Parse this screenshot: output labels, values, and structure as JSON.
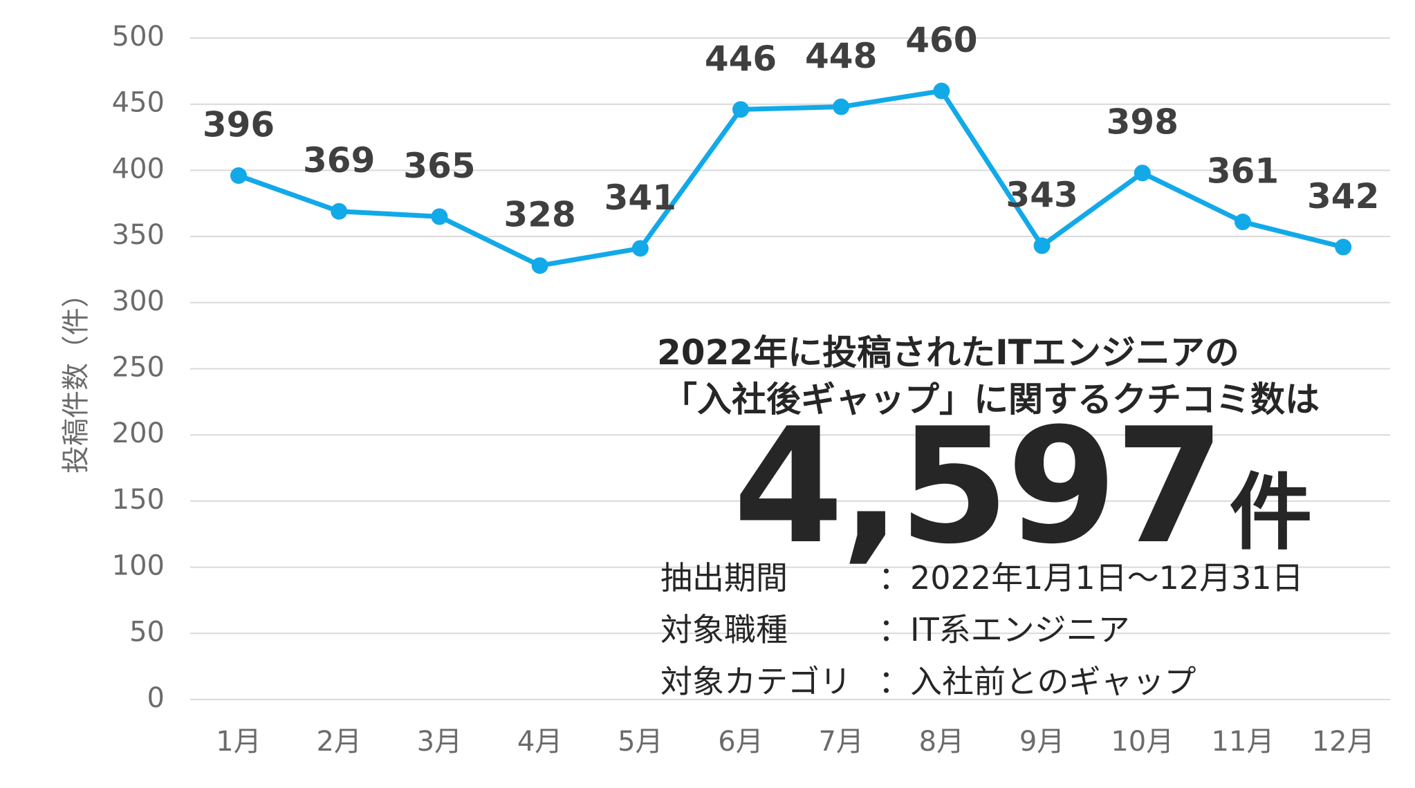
{
  "chart_data": {
    "type": "line",
    "title": "",
    "ylabel": "投稿件数（件）",
    "xlabel": "",
    "ylim": [
      0,
      500
    ],
    "yticks": [
      0,
      50,
      100,
      150,
      200,
      250,
      300,
      350,
      400,
      450,
      500
    ],
    "grid": true,
    "categories": [
      "1月",
      "2月",
      "3月",
      "4月",
      "5月",
      "6月",
      "7月",
      "8月",
      "9月",
      "10月",
      "11月",
      "12月"
    ],
    "series": [
      {
        "values": [
          396,
          369,
          365,
          328,
          341,
          446,
          448,
          460,
          343,
          398,
          361,
          342
        ]
      }
    ],
    "line_color": "#12a9e8",
    "label_color": "#3f3f3f",
    "grid_color": "#d9d9d9"
  },
  "summary": {
    "headline_line1": "2022年に投稿されたITエンジニアの",
    "headline_line2": "「入社後ギャップ」に関するクチコミ数は",
    "total": "4,597",
    "total_unit": "件",
    "meta": [
      {
        "label": "抽出期間",
        "value": "：2022年1月1日～12月31日"
      },
      {
        "label": "対象職種",
        "value": "：IT系エンジニア"
      },
      {
        "label": "対象カテゴリ",
        "value": "：入社前とのギャップ"
      }
    ]
  }
}
